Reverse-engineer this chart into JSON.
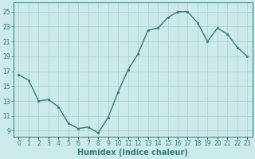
{
  "x": [
    0,
    1,
    2,
    3,
    4,
    5,
    6,
    7,
    8,
    9,
    10,
    11,
    12,
    13,
    14,
    15,
    16,
    17,
    18,
    19,
    20,
    21,
    22,
    23
  ],
  "y": [
    16.5,
    15.8,
    13.0,
    13.2,
    12.2,
    10.0,
    9.3,
    9.5,
    8.7,
    10.8,
    14.2,
    17.2,
    19.3,
    22.5,
    22.8,
    24.2,
    25.0,
    25.0,
    23.5,
    21.0,
    22.8,
    22.0,
    20.2,
    19.0
  ],
  "line_color": "#2e7d6e",
  "marker": "s",
  "marker_size": 2.0,
  "bg_color": "#cceae8",
  "grid_color": "#b0d4d0",
  "xlabel": "Humidex (Indice chaleur)",
  "xlabel_fontsize": 7,
  "yticks": [
    9,
    11,
    13,
    15,
    17,
    19,
    21,
    23,
    25
  ],
  "xtick_labels": [
    "0",
    "1",
    "2",
    "3",
    "4",
    "5",
    "6",
    "7",
    "8",
    "9",
    "10",
    "11",
    "12",
    "13",
    "14",
    "15",
    "16",
    "17",
    "18",
    "19",
    "20",
    "21",
    "22",
    "23"
  ],
  "ylim": [
    8.2,
    26.2
  ],
  "xlim": [
    -0.5,
    23.5
  ],
  "tick_color": "#2e7d6e",
  "tick_fontsize": 5.5,
  "linewidth": 1.0
}
